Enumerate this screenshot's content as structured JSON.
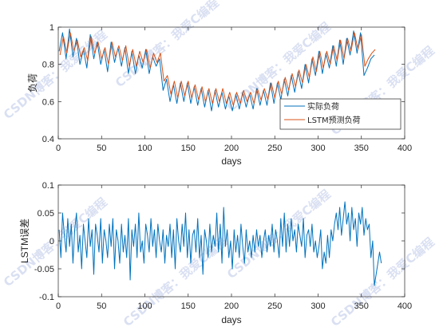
{
  "watermark": "CSDN博客：我爱C编程",
  "colors": {
    "actual": "#0072BD",
    "predicted": "#D95319",
    "error": "#0072BD",
    "axis": "#262626"
  },
  "chart_data": [
    {
      "type": "line",
      "title": "",
      "xlabel": "days",
      "ylabel": "负荷",
      "xlim": [
        0,
        400
      ],
      "ylim": [
        0.4,
        1
      ],
      "xticks": [
        "0",
        "50",
        "100",
        "150",
        "200",
        "250",
        "300",
        "350",
        "400"
      ],
      "yticks": [
        "0.4",
        "0.6",
        "0.8",
        "1"
      ],
      "grid": false,
      "legend": "bottom-right",
      "series": [
        {
          "name": "实际负荷",
          "x_start": 1,
          "x_step": 4,
          "values": [
            0.87,
            0.97,
            0.83,
            0.99,
            0.84,
            0.94,
            0.8,
            0.88,
            0.78,
            0.96,
            0.83,
            0.92,
            0.8,
            0.88,
            0.76,
            0.92,
            0.81,
            0.89,
            0.79,
            0.89,
            0.75,
            0.87,
            0.75,
            0.85,
            0.78,
            0.88,
            0.75,
            0.84,
            0.79,
            0.83,
            0.66,
            0.72,
            0.6,
            0.69,
            0.59,
            0.7,
            0.6,
            0.7,
            0.59,
            0.68,
            0.58,
            0.67,
            0.57,
            0.66,
            0.55,
            0.66,
            0.57,
            0.65,
            0.56,
            0.63,
            0.55,
            0.64,
            0.56,
            0.65,
            0.57,
            0.64,
            0.56,
            0.67,
            0.58,
            0.66,
            0.58,
            0.7,
            0.59,
            0.7,
            0.61,
            0.72,
            0.63,
            0.74,
            0.65,
            0.76,
            0.67,
            0.8,
            0.7,
            0.83,
            0.74,
            0.87,
            0.75,
            0.86,
            0.78,
            0.9,
            0.79,
            0.93,
            0.8,
            0.94,
            0.85,
            0.98,
            0.86,
            0.97,
            0.74,
            0.78,
            0.83,
            0.85
          ]
        },
        {
          "name": "LSTM预测负荷",
          "x_start": 2,
          "x_step": 4,
          "values": [
            0.85,
            0.95,
            0.86,
            0.97,
            0.87,
            0.93,
            0.84,
            0.89,
            0.82,
            0.95,
            0.86,
            0.92,
            0.83,
            0.89,
            0.8,
            0.92,
            0.84,
            0.9,
            0.82,
            0.9,
            0.79,
            0.88,
            0.79,
            0.87,
            0.81,
            0.88,
            0.78,
            0.86,
            0.81,
            0.86,
            0.71,
            0.74,
            0.64,
            0.71,
            0.62,
            0.71,
            0.63,
            0.71,
            0.62,
            0.69,
            0.61,
            0.68,
            0.6,
            0.67,
            0.59,
            0.67,
            0.6,
            0.67,
            0.59,
            0.65,
            0.58,
            0.65,
            0.59,
            0.66,
            0.6,
            0.65,
            0.59,
            0.67,
            0.61,
            0.67,
            0.61,
            0.7,
            0.62,
            0.71,
            0.64,
            0.73,
            0.66,
            0.75,
            0.68,
            0.77,
            0.7,
            0.8,
            0.73,
            0.84,
            0.76,
            0.87,
            0.78,
            0.87,
            0.8,
            0.9,
            0.82,
            0.93,
            0.83,
            0.94,
            0.87,
            0.97,
            0.88,
            0.96,
            0.79,
            0.83,
            0.86,
            0.88
          ]
        }
      ]
    },
    {
      "type": "line",
      "title": "",
      "xlabel": "days",
      "ylabel": "LSTM误差",
      "xlim": [
        0,
        400
      ],
      "ylim": [
        -0.1,
        0.1
      ],
      "xticks": [
        "0",
        "50",
        "100",
        "150",
        "200",
        "250",
        "300",
        "350",
        "400"
      ],
      "yticks": [
        "-0.1",
        "-0.05",
        "0",
        "0.05",
        "0.1"
      ],
      "grid": false,
      "series": [
        {
          "x_start": 1,
          "x_step": 2,
          "values": [
            0.02,
            -0.03,
            0.05,
            0.01,
            -0.02,
            0.04,
            -0.01,
            0.03,
            -0.04,
            0.02,
            0.05,
            -0.02,
            0.01,
            -0.05,
            0.03,
            0.0,
            -0.03,
            0.04,
            -0.01,
            0.02,
            -0.06,
            0.03,
            0.01,
            -0.02,
            0.04,
            -0.04,
            0.02,
            0.0,
            -0.03,
            0.03,
            -0.01,
            0.04,
            -0.05,
            0.02,
            0.0,
            -0.04,
            0.03,
            -0.02,
            0.01,
            -0.03,
            0.04,
            -0.07,
            0.02,
            -0.01,
            0.03,
            -0.03,
            0.05,
            -0.02,
            0.0,
            -0.04,
            0.03,
            0.01,
            -0.02,
            0.04,
            -0.01,
            0.02,
            -0.03,
            0.03,
            0.0,
            -0.02,
            0.02,
            -0.04,
            0.01,
            -0.01,
            0.03,
            -0.03,
            0.02,
            -0.05,
            0.04,
            0.0,
            -0.02,
            0.03,
            -0.01,
            0.05,
            -0.03,
            0.02,
            -0.04,
            0.01,
            0.02,
            -0.02,
            0.04,
            -0.03,
            0.01,
            -0.06,
            0.02,
            0.0,
            -0.03,
            0.03,
            -0.02,
            0.01,
            -0.01,
            0.05,
            -0.02,
            0.03,
            -0.04,
            0.06,
            -0.01,
            0.02,
            -0.03,
            0.0,
            -0.05,
            0.02,
            -0.02,
            0.01,
            -0.03,
            0.03,
            -0.01,
            -0.04,
            0.02,
            -0.02,
            0.0,
            -0.03,
            0.01,
            -0.02,
            0.02,
            -0.01,
            0.01,
            -0.03,
            0.0,
            0.02,
            -0.02,
            0.01,
            -0.01,
            0.03,
            -0.02,
            0.02,
            0.0,
            -0.03,
            0.04,
            -0.01,
            0.05,
            -0.02,
            0.03,
            -0.01,
            0.04,
            0.0,
            0.02,
            -0.02,
            0.03,
            0.01,
            -0.01,
            0.04,
            -0.03,
            0.01,
            0.02,
            -0.01,
            0.03,
            -0.02,
            0.0,
            -0.03,
            -0.01,
            0.02,
            -0.05,
            -0.02,
            -0.04,
            0.01,
            -0.03,
            0.02,
            0.0,
            0.03,
            0.05,
            0.02,
            0.06,
            0.01,
            0.04,
            0.07,
            0.03,
            0.05,
            0.0,
            0.06,
            0.02,
            0.04,
            -0.01,
            0.05,
            0.03,
            0.06,
            0.01,
            0.04,
            0.02,
            0.03,
            -0.03,
            0.0,
            -0.08,
            -0.06,
            -0.04,
            -0.02,
            -0.04
          ]
        }
      ]
    }
  ]
}
